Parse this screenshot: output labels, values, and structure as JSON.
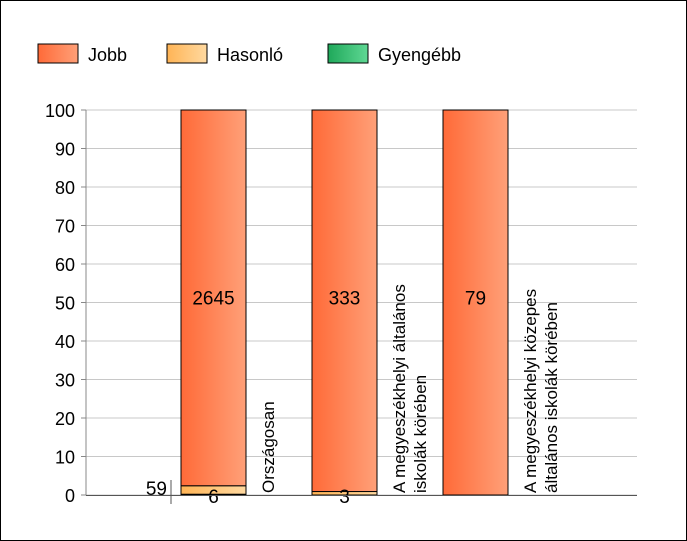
{
  "chart_data": {
    "type": "bar",
    "stacked": true,
    "categories": [
      [
        "Országosan"
      ],
      [
        "A megyeszékhelyi általános",
        "iskolák körében"
      ],
      [
        "A megyeszékhelyi közepes",
        "általános iskolák körében"
      ]
    ],
    "series": [
      {
        "name": "Jobb",
        "percent": [
          97.6,
          99.1,
          100
        ],
        "labels": [
          "2645",
          "333",
          "79"
        ]
      },
      {
        "name": "Hasonló",
        "percent": [
          2.2,
          0.9,
          0
        ],
        "labels": [
          "59",
          "3",
          ""
        ]
      },
      {
        "name": "Gyengébb",
        "percent": [
          0.2,
          0,
          0
        ],
        "labels": [
          "6",
          "",
          ""
        ]
      }
    ],
    "ylim": [
      0,
      100
    ],
    "yticks": [
      "0",
      "10",
      "20",
      "30",
      "40",
      "50",
      "60",
      "70",
      "80",
      "90",
      "100"
    ],
    "legend_position": "top-left",
    "grid": true,
    "colors": {
      "Jobb": "#ff7b4c",
      "Hasonló": "#ffc06e",
      "Gyengébb": "#2fb86a"
    }
  }
}
